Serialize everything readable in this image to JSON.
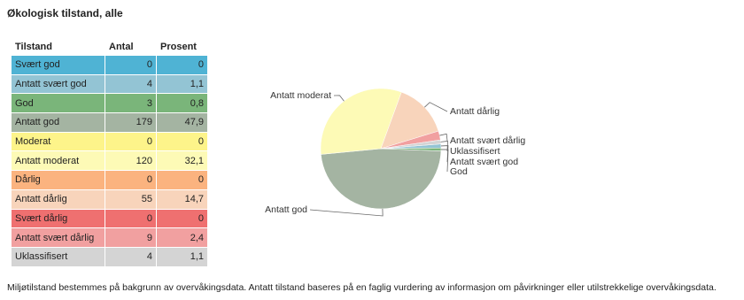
{
  "title": "Økologisk tilstand, alle",
  "table": {
    "header": [
      "Tilstand",
      "Antal",
      "Prosent"
    ],
    "rows": [
      {
        "name": "Svært god",
        "antal": 0,
        "prosent": "0",
        "color": "#4fb3d4"
      },
      {
        "name": "Antatt svært god",
        "antal": 4,
        "prosent": "1,1",
        "color": "#93c4d4"
      },
      {
        "name": "God",
        "antal": 3,
        "prosent": "0,8",
        "color": "#7ab57a"
      },
      {
        "name": "Antatt god",
        "antal": 179,
        "prosent": "47,9",
        "color": "#a4b4a2"
      },
      {
        "name": "Moderat",
        "antal": 0,
        "prosent": "0",
        "color": "#fdf48a"
      },
      {
        "name": "Antatt moderat",
        "antal": 120,
        "prosent": "32,1",
        "color": "#fdfab6"
      },
      {
        "name": "Dårlig",
        "antal": 0,
        "prosent": "0",
        "color": "#fbb37f"
      },
      {
        "name": "Antatt dårlig",
        "antal": 55,
        "prosent": "14,7",
        "color": "#f8d4bb"
      },
      {
        "name": "Svært dårlig",
        "antal": 0,
        "prosent": "0",
        "color": "#ef7070"
      },
      {
        "name": "Antatt svært dårlig",
        "antal": 9,
        "prosent": "2,4",
        "color": "#f1a0a0"
      },
      {
        "name": "Uklassifisert",
        "antal": 4,
        "prosent": "1,1",
        "color": "#d4d4d4"
      }
    ]
  },
  "footer": "Miljøtilstand bestemmes på bakgrunn av overvåkingsdata. Antatt tilstand baseres på en faglig vurdering av informasjon om påvirkninger eller utilstrekkelige overvåkingsdata."
}
